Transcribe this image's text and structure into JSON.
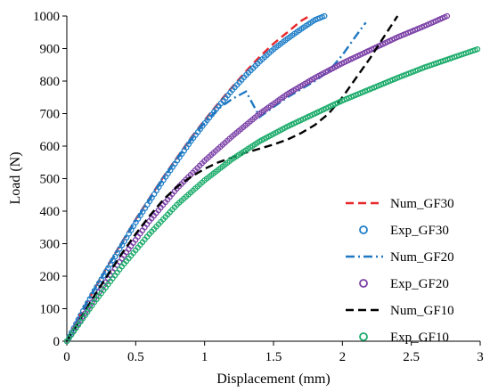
{
  "chart_data": {
    "type": "line",
    "title": "",
    "xlabel": "Displacement (mm)",
    "ylabel": "Load (N)",
    "xlim": [
      0,
      3
    ],
    "ylim": [
      0,
      1000
    ],
    "xticks": [
      "0",
      "0.5",
      "1",
      "1.5",
      "2",
      "2.5",
      "3"
    ],
    "yticks": [
      "0",
      "100",
      "200",
      "300",
      "400",
      "500",
      "600",
      "700",
      "800",
      "900",
      "1000"
    ],
    "grid": false,
    "legend_position": "lower-right",
    "series": [
      {
        "name": "Num_GF30",
        "style": "dashed",
        "color": "#e8262b",
        "x": [
          0,
          0.1,
          0.2,
          0.3,
          0.4,
          0.5,
          0.6,
          0.7,
          0.8,
          0.9,
          1.0,
          1.1,
          1.2,
          1.3,
          1.4,
          1.5,
          1.6,
          1.7,
          1.76
        ],
        "y": [
          0,
          85,
          160,
          235,
          305,
          375,
          440,
          505,
          565,
          625,
          680,
          732,
          782,
          830,
          875,
          915,
          950,
          985,
          1000
        ]
      },
      {
        "name": "Exp_GF30",
        "style": "circle",
        "color": "#1e7ec8",
        "x": [
          0,
          0.1,
          0.2,
          0.3,
          0.4,
          0.5,
          0.6,
          0.7,
          0.8,
          0.9,
          1.0,
          1.1,
          1.2,
          1.3,
          1.4,
          1.5,
          1.6,
          1.7,
          1.8,
          1.87
        ],
        "y": [
          0,
          80,
          155,
          225,
          295,
          365,
          430,
          495,
          555,
          615,
          670,
          722,
          772,
          818,
          860,
          898,
          930,
          960,
          988,
          1000
        ]
      },
      {
        "name": "Num_GF20",
        "style": "dashdot",
        "color": "#1f78c1",
        "x": [
          0,
          0.1,
          0.2,
          0.3,
          0.4,
          0.5,
          0.6,
          0.7,
          0.8,
          0.9,
          1.0,
          1.1,
          1.2,
          1.3,
          1.4,
          1.5,
          1.6,
          1.7,
          1.8,
          1.9,
          2.0,
          2.1,
          2.17
        ],
        "y": [
          0,
          83,
          158,
          230,
          300,
          370,
          435,
          500,
          560,
          618,
          672,
          715,
          745,
          768,
          690,
          720,
          750,
          775,
          800,
          830,
          880,
          940,
          980
        ]
      },
      {
        "name": "Exp_GF20",
        "style": "circle",
        "color": "#7a3fa6",
        "x": [
          0,
          0.2,
          0.4,
          0.6,
          0.8,
          1.0,
          1.2,
          1.4,
          1.6,
          1.8,
          2.0,
          2.2,
          2.4,
          2.6,
          2.76
        ],
        "y": [
          0,
          130,
          255,
          370,
          470,
          555,
          630,
          700,
          760,
          810,
          855,
          895,
          935,
          970,
          1000
        ]
      },
      {
        "name": "Num_GF10",
        "style": "dashed",
        "color": "#000000",
        "x": [
          0,
          0.1,
          0.2,
          0.3,
          0.4,
          0.5,
          0.6,
          0.7,
          0.8,
          0.9,
          1.0,
          1.1,
          1.2,
          1.3,
          1.4,
          1.5,
          1.6,
          1.7,
          1.8,
          1.9,
          2.0,
          2.1,
          2.2,
          2.3,
          2.4
        ],
        "y": [
          0,
          70,
          140,
          205,
          270,
          330,
          385,
          435,
          475,
          505,
          530,
          550,
          565,
          580,
          592,
          605,
          620,
          640,
          665,
          700,
          750,
          810,
          870,
          935,
          1000
        ]
      },
      {
        "name": "Exp_GF10",
        "style": "circle",
        "color": "#1aab6a",
        "x": [
          0,
          0.2,
          0.4,
          0.6,
          0.8,
          1.0,
          1.2,
          1.4,
          1.6,
          1.8,
          2.0,
          2.2,
          2.4,
          2.6,
          2.8,
          2.98
        ],
        "y": [
          0,
          120,
          230,
          330,
          420,
          495,
          560,
          615,
          660,
          700,
          740,
          775,
          810,
          843,
          872,
          898
        ]
      }
    ]
  }
}
